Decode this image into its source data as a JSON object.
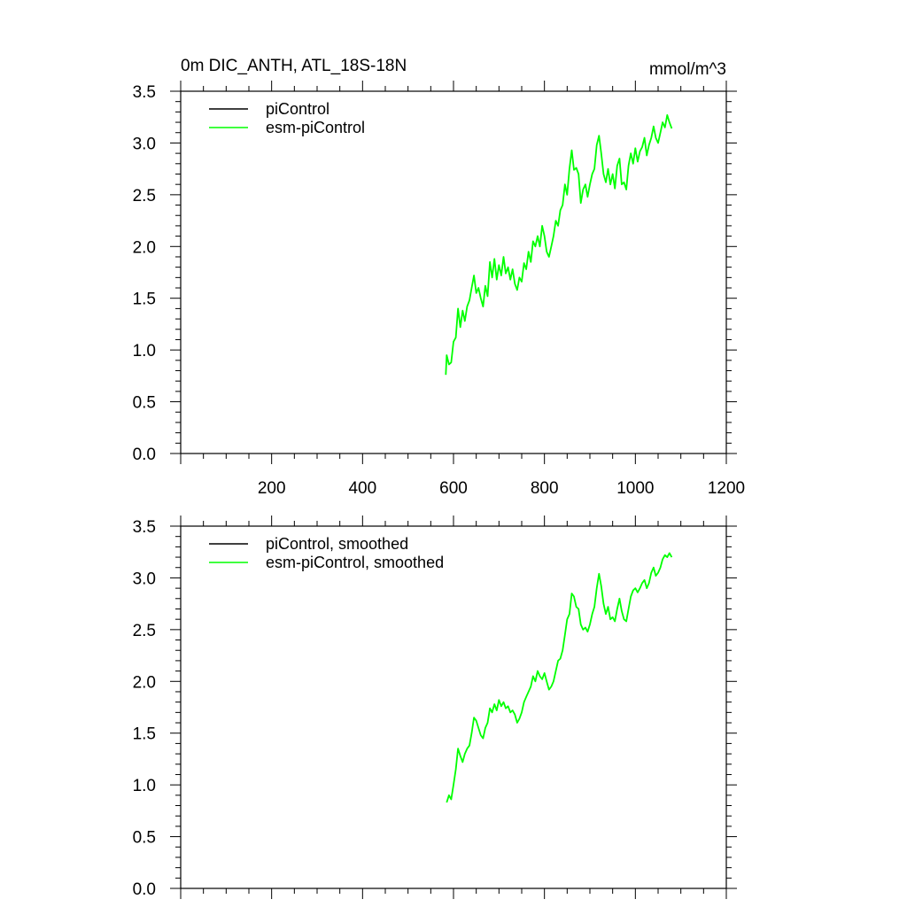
{
  "figure": {
    "title_left": "0m DIC_ANTH, ATL_18S-18N",
    "title_right": "mmol/m^3"
  },
  "chart_data": [
    {
      "type": "line",
      "title": "0m DIC_ANTH, ATL_18S-18N",
      "units": "mmol/m^3",
      "xlim": [
        0,
        1200
      ],
      "ylim": [
        0.0,
        3.5
      ],
      "xticks": [
        200,
        400,
        600,
        800,
        1000,
        1200
      ],
      "xtick_labels": [
        "200",
        "400",
        "600",
        "800",
        "1000",
        "1200"
      ],
      "yticks": [
        0.0,
        0.5,
        1.0,
        1.5,
        2.0,
        2.5,
        3.0,
        3.5
      ],
      "ytick_labels": [
        "0.0",
        "0.5",
        "1.0",
        "1.5",
        "2.0",
        "2.5",
        "3.0",
        "3.5"
      ],
      "grid": false,
      "legend_position": "top-left",
      "series": [
        {
          "name": "piControl",
          "color": "#000000",
          "x": [],
          "y": []
        },
        {
          "name": "esm-piControl",
          "color": "#00ff00",
          "x": [
            583,
            585,
            590,
            595,
            600,
            605,
            610,
            615,
            620,
            625,
            630,
            635,
            640,
            645,
            650,
            655,
            660,
            665,
            670,
            675,
            680,
            685,
            690,
            695,
            700,
            705,
            710,
            715,
            720,
            725,
            730,
            735,
            740,
            745,
            750,
            755,
            760,
            765,
            770,
            775,
            780,
            785,
            790,
            795,
            800,
            805,
            810,
            815,
            820,
            825,
            830,
            835,
            840,
            845,
            850,
            855,
            860,
            865,
            870,
            875,
            880,
            885,
            890,
            895,
            900,
            905,
            910,
            915,
            920,
            925,
            930,
            935,
            940,
            945,
            950,
            955,
            960,
            965,
            970,
            975,
            980,
            985,
            990,
            995,
            1000,
            1005,
            1010,
            1015,
            1020,
            1025,
            1030,
            1035,
            1040,
            1045,
            1050,
            1055,
            1060,
            1065,
            1070,
            1075,
            1080
          ],
          "y": [
            0.76,
            0.95,
            0.86,
            0.88,
            1.08,
            1.12,
            1.4,
            1.22,
            1.38,
            1.28,
            1.42,
            1.48,
            1.6,
            1.72,
            1.55,
            1.6,
            1.5,
            1.42,
            1.62,
            1.52,
            1.85,
            1.7,
            1.88,
            1.68,
            1.82,
            1.72,
            1.9,
            1.74,
            1.8,
            1.68,
            1.78,
            1.64,
            1.58,
            1.7,
            1.66,
            1.84,
            1.78,
            1.95,
            1.85,
            2.05,
            2.0,
            2.1,
            2.0,
            2.2,
            2.1,
            1.95,
            1.9,
            2.0,
            2.1,
            2.25,
            2.2,
            2.35,
            2.4,
            2.6,
            2.5,
            2.75,
            2.93,
            2.74,
            2.76,
            2.7,
            2.42,
            2.55,
            2.6,
            2.48,
            2.6,
            2.7,
            2.75,
            2.98,
            3.07,
            2.9,
            2.7,
            2.62,
            2.75,
            2.6,
            2.7,
            2.56,
            2.78,
            2.85,
            2.6,
            2.62,
            2.55,
            2.78,
            2.9,
            2.8,
            2.95,
            2.82,
            2.92,
            2.96,
            3.05,
            2.88,
            2.98,
            3.05,
            3.16,
            3.05,
            3.0,
            3.1,
            3.2,
            3.15,
            3.27,
            3.2,
            3.14
          ]
        }
      ]
    },
    {
      "type": "line",
      "xlim": [
        0,
        1200
      ],
      "ylim": [
        0.0,
        3.5
      ],
      "xticks": [
        200,
        400,
        600,
        800,
        1000,
        1200
      ],
      "yticks": [
        0.0,
        0.5,
        1.0,
        1.5,
        2.0,
        2.5,
        3.0,
        3.5
      ],
      "ytick_labels": [
        "0.0",
        "0.5",
        "1.0",
        "1.5",
        "2.0",
        "2.5",
        "3.0",
        "3.5"
      ],
      "grid": false,
      "legend_position": "top-left",
      "series": [
        {
          "name": "piControl, smoothed",
          "color": "#000000",
          "x": [],
          "y": []
        },
        {
          "name": "esm-piControl, smoothed",
          "color": "#00ff00",
          "x": [
            585,
            590,
            595,
            600,
            605,
            610,
            615,
            620,
            625,
            630,
            635,
            640,
            645,
            650,
            655,
            660,
            665,
            670,
            675,
            680,
            685,
            690,
            695,
            700,
            705,
            710,
            715,
            720,
            725,
            730,
            735,
            740,
            745,
            750,
            755,
            760,
            765,
            770,
            775,
            780,
            785,
            790,
            795,
            800,
            805,
            810,
            815,
            820,
            825,
            830,
            835,
            840,
            845,
            850,
            855,
            860,
            865,
            870,
            875,
            880,
            885,
            890,
            895,
            900,
            905,
            910,
            915,
            920,
            925,
            930,
            935,
            940,
            945,
            950,
            955,
            960,
            965,
            970,
            975,
            980,
            985,
            990,
            995,
            1000,
            1005,
            1010,
            1015,
            1020,
            1025,
            1030,
            1035,
            1040,
            1045,
            1050,
            1055,
            1060,
            1065,
            1070,
            1075,
            1080
          ],
          "y": [
            0.83,
            0.9,
            0.86,
            1.0,
            1.15,
            1.35,
            1.28,
            1.22,
            1.3,
            1.35,
            1.38,
            1.5,
            1.65,
            1.62,
            1.55,
            1.48,
            1.45,
            1.55,
            1.6,
            1.74,
            1.7,
            1.78,
            1.72,
            1.82,
            1.76,
            1.8,
            1.74,
            1.76,
            1.7,
            1.72,
            1.68,
            1.6,
            1.64,
            1.7,
            1.8,
            1.85,
            1.9,
            1.95,
            2.05,
            2.0,
            2.1,
            2.05,
            2.02,
            2.08,
            2.0,
            1.92,
            1.95,
            2.0,
            2.1,
            2.2,
            2.22,
            2.3,
            2.45,
            2.6,
            2.65,
            2.85,
            2.82,
            2.72,
            2.7,
            2.55,
            2.5,
            2.52,
            2.48,
            2.55,
            2.65,
            2.72,
            2.9,
            3.04,
            2.92,
            2.75,
            2.65,
            2.72,
            2.6,
            2.62,
            2.58,
            2.7,
            2.8,
            2.68,
            2.6,
            2.58,
            2.7,
            2.82,
            2.88,
            2.9,
            2.86,
            2.9,
            2.95,
            2.98,
            2.9,
            2.95,
            3.05,
            3.1,
            3.02,
            3.05,
            3.1,
            3.18,
            3.22,
            3.2,
            3.24,
            3.2
          ]
        }
      ]
    }
  ]
}
